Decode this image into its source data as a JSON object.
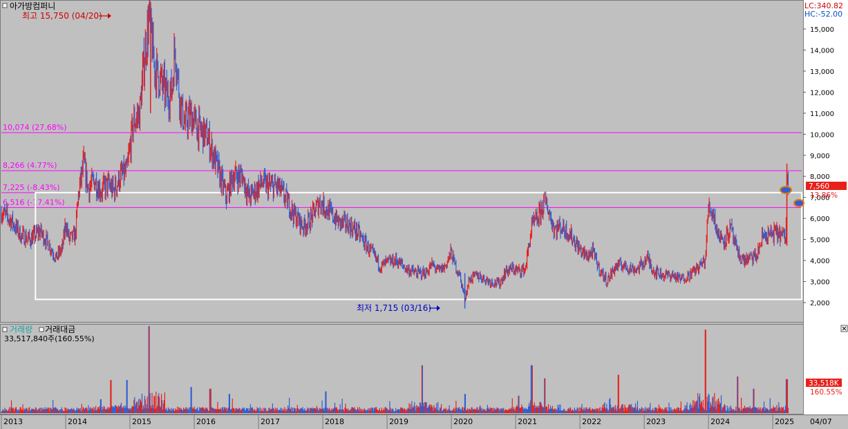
{
  "title": "아가방컴퍼니",
  "window_title_icon": "square-icon",
  "lc_label": "LC:340.82",
  "hc_label": "HC:-52.00",
  "high_label": "최고 15,750 (04/20)",
  "low_label": "최저 1,715 (03/16)",
  "current_price_badge": "7,560",
  "current_pct_label": "13.86%",
  "volume_tabs": [
    "거래량",
    "거래대금"
  ],
  "volume_active_tab": 0,
  "volume_info": "33,517,840주(160.55%)",
  "volume_badge": "33,518K",
  "volume_pct_label": "160.55%",
  "date_label": "04/07",
  "colors": {
    "background": "#c0c0c0",
    "up": "#e8201a",
    "down": "#2e5fd3",
    "level_line": "#ff00ff",
    "box": "#ffffff",
    "high_text": "#d00000",
    "low_text": "#0000c0",
    "lc_text": "#d00000",
    "hc_text": "#0050c0"
  },
  "chart_data": [
    {
      "type": "candlestick",
      "name": "price",
      "x_range": [
        2013.0,
        2025.45
      ],
      "ylim": [
        1500,
        16000
      ],
      "y_ticks": [
        2000,
        3000,
        4000,
        5000,
        6000,
        7000,
        8000,
        9000,
        10000,
        11000,
        12000,
        13000,
        14000,
        15000
      ],
      "y_tick_labels": [
        "2,000",
        "3,000",
        "4,000",
        "5,000",
        "6,000",
        "7,000",
        "8,000",
        "9,000",
        "10,000",
        "11,000",
        "12,000",
        "13,000",
        "14,000",
        "15,000"
      ],
      "x_ticks": [
        2013.0,
        2014.0,
        2015.0,
        2016.0,
        2017.0,
        2018.0,
        2019.0,
        2020.0,
        2021.0,
        2022.0,
        2023.0,
        2024.0,
        2025.0
      ],
      "x_tick_labels": [
        "2013",
        "2014",
        "2015",
        "2016",
        "2017",
        "2018",
        "2019",
        "2020",
        "2021",
        "2022",
        "2023",
        "2024",
        "2025"
      ],
      "levels": [
        {
          "value": 10074,
          "label": "10,074 (27.68%)"
        },
        {
          "value": 8266,
          "label": "8,266 (4.77%)"
        },
        {
          "value": 7225,
          "label": "7,225 (-8.43%)"
        },
        {
          "value": 6516,
          "label": "6,516 (-17.41%)"
        }
      ],
      "box": {
        "x0": 2013.53,
        "x1": 2025.45,
        "y0": 2150,
        "y1": 7225
      },
      "high": {
        "x": 2015.32,
        "y": 15750
      },
      "low": {
        "x": 2020.21,
        "y": 1715
      },
      "last": {
        "x": 2025.25,
        "y": 7560
      },
      "close_path": [
        [
          2013.0,
          6300
        ],
        [
          2013.15,
          5900
        ],
        [
          2013.3,
          5200
        ],
        [
          2013.45,
          5000
        ],
        [
          2013.6,
          5400
        ],
        [
          2013.75,
          4700
        ],
        [
          2013.85,
          4100
        ],
        [
          2013.95,
          4600
        ],
        [
          2014.0,
          5800
        ],
        [
          2014.05,
          5000
        ],
        [
          2014.15,
          5200
        ],
        [
          2014.2,
          7200
        ],
        [
          2014.28,
          8600
        ],
        [
          2014.35,
          7400
        ],
        [
          2014.45,
          7800
        ],
        [
          2014.55,
          7300
        ],
        [
          2014.65,
          7600
        ],
        [
          2014.75,
          7300
        ],
        [
          2014.85,
          8000
        ],
        [
          2014.95,
          8200
        ],
        [
          2015.05,
          10500
        ],
        [
          2015.15,
          11000
        ],
        [
          2015.22,
          13500
        ],
        [
          2015.3,
          15600
        ],
        [
          2015.38,
          13200
        ],
        [
          2015.48,
          12500
        ],
        [
          2015.58,
          11800
        ],
        [
          2015.65,
          12000
        ],
        [
          2015.7,
          14200
        ],
        [
          2015.78,
          11500
        ],
        [
          2015.85,
          10500
        ],
        [
          2015.95,
          10900
        ],
        [
          2016.05,
          10300
        ],
        [
          2016.2,
          9900
        ],
        [
          2016.35,
          8500
        ],
        [
          2016.45,
          7500
        ],
        [
          2016.5,
          7000
        ],
        [
          2016.6,
          8000
        ],
        [
          2016.75,
          8000
        ],
        [
          2016.85,
          7000
        ],
        [
          2016.95,
          7300
        ],
        [
          2017.05,
          7700
        ],
        [
          2017.15,
          7500
        ],
        [
          2017.3,
          7500
        ],
        [
          2017.45,
          6800
        ],
        [
          2017.55,
          6200
        ],
        [
          2017.7,
          5600
        ],
        [
          2017.8,
          5900
        ],
        [
          2017.95,
          6800
        ],
        [
          2018.1,
          6300
        ],
        [
          2018.25,
          5800
        ],
        [
          2018.4,
          5700
        ],
        [
          2018.55,
          5300
        ],
        [
          2018.7,
          4600
        ],
        [
          2018.8,
          4200
        ],
        [
          2018.9,
          3700
        ],
        [
          2019.0,
          3900
        ],
        [
          2019.15,
          4000
        ],
        [
          2019.3,
          3600
        ],
        [
          2019.45,
          3400
        ],
        [
          2019.6,
          3400
        ],
        [
          2019.7,
          3800
        ],
        [
          2019.8,
          3500
        ],
        [
          2019.9,
          3700
        ],
        [
          2020.0,
          4400
        ],
        [
          2020.05,
          3800
        ],
        [
          2020.12,
          3400
        ],
        [
          2020.21,
          2200
        ],
        [
          2020.28,
          3100
        ],
        [
          2020.4,
          3300
        ],
        [
          2020.6,
          3000
        ],
        [
          2020.75,
          2900
        ],
        [
          2020.85,
          3500
        ],
        [
          2020.95,
          3600
        ],
        [
          2021.05,
          3500
        ],
        [
          2021.15,
          3600
        ],
        [
          2021.25,
          5600
        ],
        [
          2021.35,
          6000
        ],
        [
          2021.45,
          6800
        ],
        [
          2021.5,
          6500
        ],
        [
          2021.6,
          5500
        ],
        [
          2021.7,
          5600
        ],
        [
          2021.8,
          5400
        ],
        [
          2021.9,
          5000
        ],
        [
          2022.0,
          4500
        ],
        [
          2022.1,
          4200
        ],
        [
          2022.2,
          4400
        ],
        [
          2022.3,
          3600
        ],
        [
          2022.42,
          3000
        ],
        [
          2022.55,
          3700
        ],
        [
          2022.65,
          3800
        ],
        [
          2022.8,
          3600
        ],
        [
          2022.9,
          3600
        ],
        [
          2023.05,
          4100
        ],
        [
          2023.15,
          3500
        ],
        [
          2023.3,
          3300
        ],
        [
          2023.45,
          3300
        ],
        [
          2023.55,
          3100
        ],
        [
          2023.7,
          3300
        ],
        [
          2023.85,
          3700
        ],
        [
          2023.95,
          4000
        ],
        [
          2024.0,
          6600
        ],
        [
          2024.08,
          6200
        ],
        [
          2024.15,
          5200
        ],
        [
          2024.25,
          5000
        ],
        [
          2024.35,
          5500
        ],
        [
          2024.45,
          4300
        ],
        [
          2024.55,
          4000
        ],
        [
          2024.65,
          4100
        ],
        [
          2024.75,
          4200
        ],
        [
          2024.85,
          5200
        ],
        [
          2024.95,
          5200
        ],
        [
          2025.05,
          5300
        ],
        [
          2025.15,
          5200
        ],
        [
          2025.2,
          5000
        ],
        [
          2025.22,
          7800
        ],
        [
          2025.25,
          7560
        ]
      ]
    },
    {
      "type": "bar",
      "name": "volume",
      "x_range": [
        2013.0,
        2025.45
      ],
      "peaks": [
        [
          2014.7,
          0.38
        ],
        [
          2015.3,
          1.0
        ],
        [
          2014.95,
          0.38
        ],
        [
          2015.95,
          0.3
        ],
        [
          2016.25,
          0.28
        ],
        [
          2016.55,
          0.22
        ],
        [
          2018.05,
          0.25
        ],
        [
          2019.55,
          0.55
        ],
        [
          2021.25,
          0.55
        ],
        [
          2021.45,
          0.4
        ],
        [
          2022.6,
          0.44
        ],
        [
          2023.95,
          0.96
        ],
        [
          2024.45,
          0.42
        ],
        [
          2025.22,
          0.39
        ],
        [
          2020.21,
          0.22
        ],
        [
          2021.05,
          0.2
        ],
        [
          2024.7,
          0.28
        ]
      ]
    }
  ]
}
